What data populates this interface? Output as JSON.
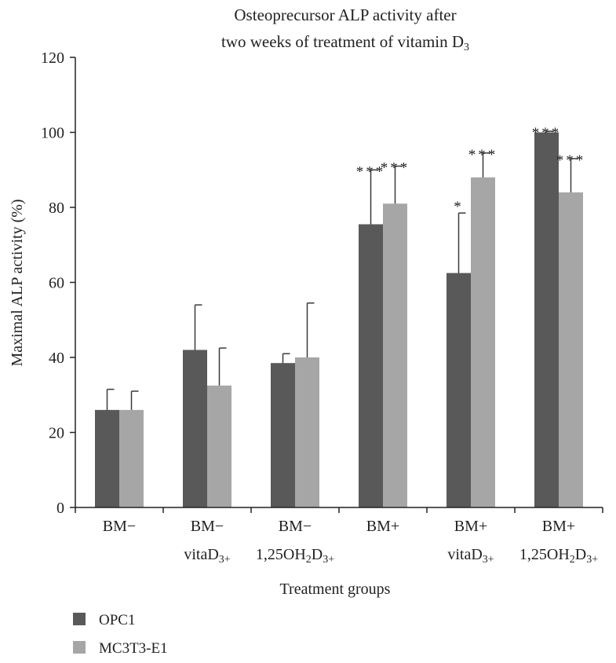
{
  "chart_data": {
    "type": "bar",
    "title": "Osteoprecursor ALP activity after two weeks of treatment of vitamin D",
    "title_line1": "Osteoprecursor ALP activity after",
    "title_line2_main": "two weeks of treatment of vitamin D",
    "title_line2_sub": "3",
    "xlabel": "Treatment groups",
    "ylabel": "Maximal ALP activity (%)",
    "ylim": [
      0,
      120
    ],
    "yticks": [
      "0",
      "20",
      "40",
      "60",
      "80",
      "100",
      "120"
    ],
    "categories": [
      "BM−",
      "BM− vitaD3+",
      "BM− 1,25OH2D3+",
      "BM+",
      "BM+ vitaD3+",
      "BM+ 1,25OH2D3+"
    ],
    "category_labels": [
      {
        "line1": "BM−",
        "line2": []
      },
      {
        "line1": "BM−",
        "line2": [
          {
            "t": "vitaD",
            "s": "n"
          },
          {
            "t": "3+",
            "s": "sub"
          }
        ]
      },
      {
        "line1": "BM−",
        "line2": [
          {
            "t": "1,25OH",
            "s": "n"
          },
          {
            "t": "2",
            "s": "sub"
          },
          {
            "t": "D",
            "s": "n"
          },
          {
            "t": "3+",
            "s": "sub"
          }
        ]
      },
      {
        "line1": "BM+",
        "line2": []
      },
      {
        "line1": "BM+",
        "line2": [
          {
            "t": "vitaD",
            "s": "n"
          },
          {
            "t": "3+",
            "s": "sub"
          }
        ]
      },
      {
        "line1": "BM+",
        "line2": [
          {
            "t": "1,25OH",
            "s": "n"
          },
          {
            "t": "2",
            "s": "sub"
          },
          {
            "t": "D",
            "s": "n"
          },
          {
            "t": "3+",
            "s": "sub"
          }
        ]
      }
    ],
    "series": [
      {
        "name": "OPC1",
        "color": "#595959",
        "values": [
          26,
          42,
          38.5,
          75.5,
          62.5,
          100
        ],
        "errors": [
          5.5,
          12,
          2.5,
          14.5,
          16,
          0.3
        ],
        "significance": [
          "",
          "",
          "",
          "***",
          "*",
          "***"
        ]
      },
      {
        "name": "MC3T3-E1",
        "color": "#a6a6a6",
        "values": [
          26,
          32.5,
          40,
          81,
          88,
          84
        ],
        "errors": [
          5,
          10,
          14.5,
          10,
          6.5,
          9
        ],
        "significance": [
          "",
          "",
          "",
          "***",
          "***",
          "***"
        ]
      }
    ],
    "grid": false,
    "legend_position": "bottom-left"
  }
}
